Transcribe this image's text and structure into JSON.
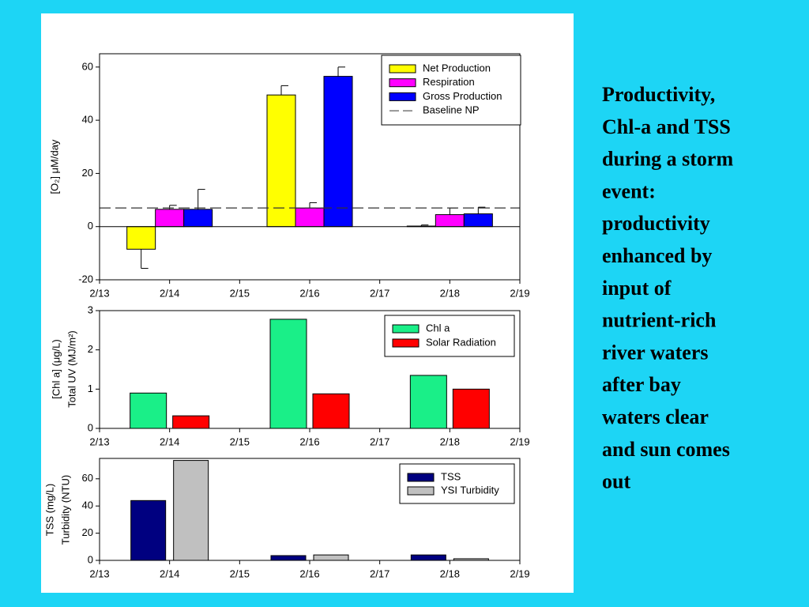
{
  "chart_data": [
    {
      "type": "bar",
      "ylabel": "[O₂] μM/day",
      "categories": [
        "2/13",
        "2/14",
        "2/15",
        "2/16",
        "2/17",
        "2/18",
        "2/19"
      ],
      "series": [
        {
          "name": "Net Production",
          "color": "#ffff00",
          "values": [
            null,
            -8.5,
            null,
            49.5,
            null,
            0.2,
            null
          ],
          "errors": [
            null,
            7.2,
            null,
            3.5,
            null,
            0.4,
            null
          ]
        },
        {
          "name": "Respiration",
          "color": "#ff00ff",
          "values": [
            null,
            6.5,
            null,
            7,
            null,
            4.5,
            null
          ],
          "errors": [
            null,
            1.5,
            null,
            2,
            null,
            2.5,
            null
          ]
        },
        {
          "name": "Gross Production",
          "color": "#0000ff",
          "values": [
            null,
            6.5,
            null,
            56.5,
            null,
            4.8,
            null
          ],
          "errors": [
            null,
            7.5,
            null,
            3.5,
            null,
            2.5,
            null
          ]
        }
      ],
      "reference_lines": [
        {
          "name": "Baseline NP",
          "value": 7
        }
      ],
      "ylim": [
        -20,
        65
      ],
      "yticks": [
        -20,
        0,
        20,
        40,
        60
      ],
      "legend": "upper right"
    },
    {
      "type": "bar",
      "ylabel": [
        "[Chl a] (μg/L)",
        "Total UV (MJ/m²)"
      ],
      "categories": [
        "2/13",
        "2/14",
        "2/15",
        "2/16",
        "2/17",
        "2/18",
        "2/19"
      ],
      "series": [
        {
          "name": "Chl a",
          "color": "#1aef88",
          "values": [
            null,
            0.9,
            null,
            2.78,
            null,
            1.35,
            null
          ]
        },
        {
          "name": "Solar Radiation",
          "color": "#ff0000",
          "values": [
            null,
            0.32,
            null,
            0.88,
            null,
            1.0,
            null
          ]
        }
      ],
      "ylim": [
        0,
        3
      ],
      "yticks": [
        0,
        1,
        2,
        3
      ],
      "legend": "upper right"
    },
    {
      "type": "bar",
      "ylabel": [
        "TSS (mg/L)",
        "Turbidity (NTU)"
      ],
      "categories": [
        "2/13",
        "2/14",
        "2/15",
        "2/16",
        "2/17",
        "2/18",
        "2/19"
      ],
      "series": [
        {
          "name": "TSS",
          "color": "#000080",
          "values": [
            null,
            44,
            null,
            3.5,
            null,
            4,
            null
          ]
        },
        {
          "name": "YSI Turbidity",
          "color": "#c0c0c0",
          "values": [
            null,
            73.5,
            null,
            4,
            null,
            1.2,
            null
          ]
        }
      ],
      "ylim": [
        0,
        75
      ],
      "yticks": [
        0,
        20,
        40,
        60
      ],
      "legend": "upper right"
    }
  ],
  "caption": {
    "lines": [
      "Productivity,",
      "Chl-a and TSS",
      "during a storm",
      "event:",
      "productivity",
      "enhanced by",
      "input of",
      "nutrient-rich",
      "river waters",
      "after bay",
      "waters clear",
      "and sun comes",
      "out"
    ]
  }
}
